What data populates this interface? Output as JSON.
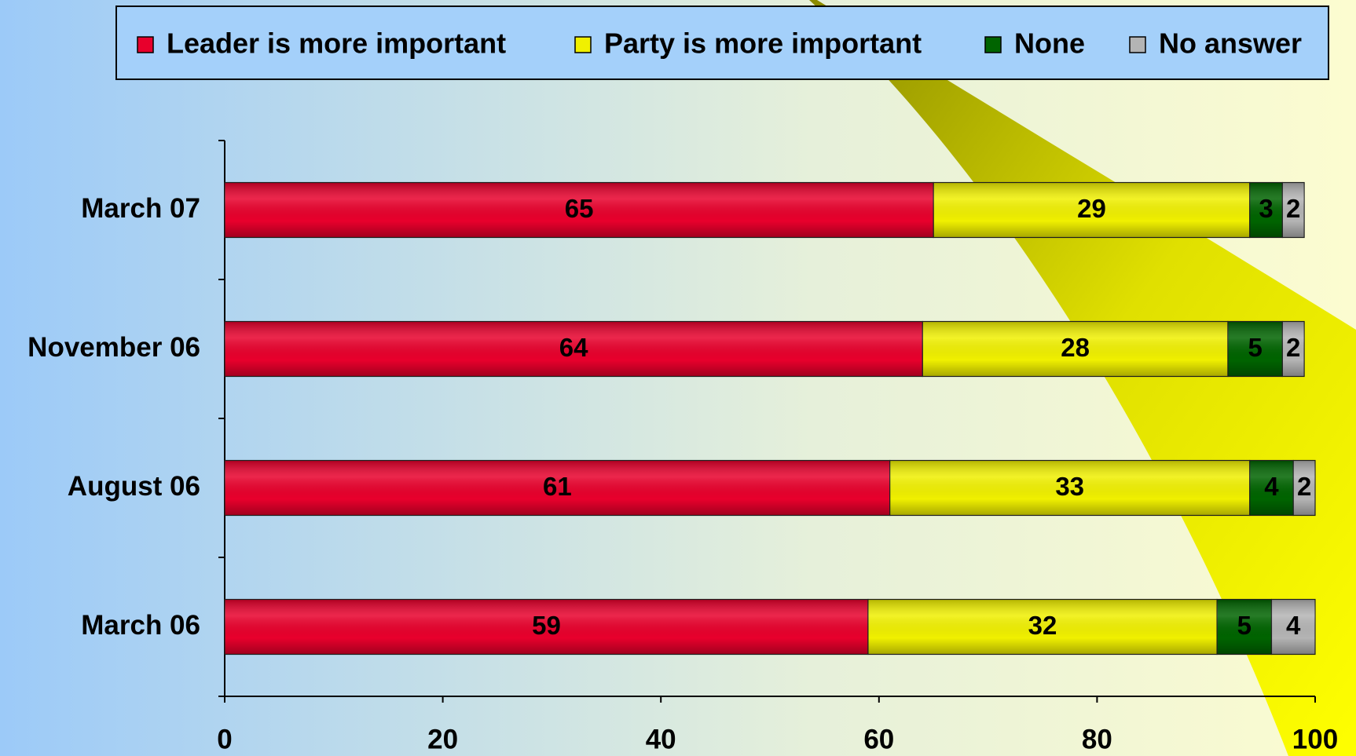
{
  "chart_data": {
    "type": "stacked_barh",
    "categories": [
      "March 07",
      "November 06",
      "August 06",
      "March 06"
    ],
    "series": [
      {
        "name": "Leader is more important",
        "color": "#e8002c",
        "values": [
          65,
          64,
          61,
          59
        ]
      },
      {
        "name": "Party is more important",
        "color": "#f0f000",
        "values": [
          29,
          28,
          33,
          32
        ]
      },
      {
        "name": "None",
        "color": "#006400",
        "values": [
          3,
          5,
          4,
          5
        ]
      },
      {
        "name": "No answer",
        "color": "#b4b4b4",
        "values": [
          2,
          2,
          2,
          4
        ]
      }
    ],
    "xlim": [
      0,
      100
    ],
    "xticks": [
      0,
      20,
      40,
      60,
      80,
      100
    ],
    "legend": "top"
  }
}
